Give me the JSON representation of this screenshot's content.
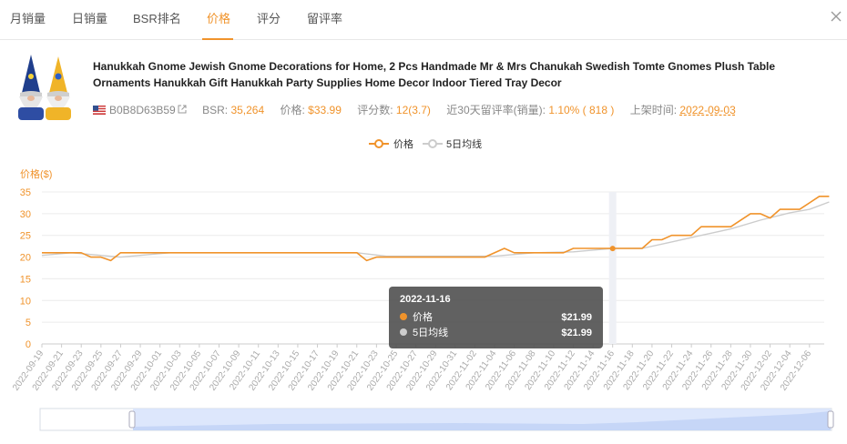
{
  "tabs": [
    {
      "label": "月销量"
    },
    {
      "label": "日销量"
    },
    {
      "label": "BSR排名"
    },
    {
      "label": "价格",
      "active": true
    },
    {
      "label": "评分"
    },
    {
      "label": "留评率"
    }
  ],
  "product": {
    "title": "Hanukkah Gnome Jewish Gnome Decorations for Home, 2 Pcs Handmade Mr & Mrs Chanukah Swedish Tomte Gnomes Plush Table Ornaments Hanukkah Gift Hanukkah Party Supplies Home Decor Indoor Tiered Tray Decor",
    "asin": "B0B8D63B59",
    "bsr_label": "BSR:",
    "bsr_value": "35,264",
    "price_label": "价格:",
    "price_value": "$33.99",
    "rating_label": "评分数:",
    "rating_value": "12(3.7)",
    "review_rate_label": "近30天留评率(销量):",
    "review_rate_value": "1.10% ( 818 )",
    "listed_label": "上架时间:",
    "listed_value": "2022-09-03"
  },
  "icons": {
    "flag": "us-flag-icon",
    "link": "external-link-icon",
    "close": "close-icon"
  },
  "colors": {
    "accent": "#f0932b",
    "ma_line": "#cccccc",
    "tooltip_bg": "#505050",
    "zoom_fill": "#d4e1fb"
  },
  "tooltip": {
    "date": "2022-11-16",
    "rows": [
      {
        "name": "价格",
        "value": "$21.99",
        "color": "#f0932b"
      },
      {
        "name": "5日均线",
        "value": "$21.99",
        "color": "#cccccc"
      }
    ]
  },
  "chart_data": {
    "type": "line",
    "ylabel": "价格($)",
    "ylim": [
      0,
      35
    ],
    "yticks": [
      0,
      5,
      10,
      15,
      20,
      25,
      30,
      35
    ],
    "grid": true,
    "legend": {
      "position": "top-center",
      "entries": [
        "价格",
        "5日均线"
      ]
    },
    "x_start": "2022-09-19",
    "x_end": "2022-12-07",
    "xtick_labels": [
      "2022-09-19",
      "2022-09-21",
      "2022-09-23",
      "2022-09-25",
      "2022-09-27",
      "2022-09-29",
      "2022-10-01",
      "2022-10-03",
      "2022-10-05",
      "2022-10-07",
      "2022-10-09",
      "2022-10-11",
      "2022-10-13",
      "2022-10-15",
      "2022-10-17",
      "2022-10-19",
      "2022-10-21",
      "2022-10-23",
      "2022-10-25",
      "2022-10-27",
      "2022-10-29",
      "2022-10-31",
      "2022-11-02",
      "2022-11-04",
      "2022-11-06",
      "2022-11-08",
      "2022-11-10",
      "2022-11-12",
      "2022-11-14",
      "2022-11-16",
      "2022-11-18",
      "2022-11-20",
      "2022-11-22",
      "2022-11-24",
      "2022-11-26",
      "2022-11-28",
      "2022-11-30",
      "2022-12-02",
      "2022-12-04",
      "2022-12-06"
    ],
    "highlight_x": "2022-11-16",
    "series": [
      {
        "name": "价格",
        "points": [
          [
            "2022-09-19",
            21
          ],
          [
            "2022-09-23",
            21
          ],
          [
            "2022-09-24",
            20
          ],
          [
            "2022-09-25",
            20
          ],
          [
            "2022-09-26",
            19.2
          ],
          [
            "2022-09-27",
            21
          ],
          [
            "2022-10-21",
            21
          ],
          [
            "2022-10-22",
            19.2
          ],
          [
            "2022-10-23",
            20
          ],
          [
            "2022-11-03",
            20
          ],
          [
            "2022-11-05",
            22
          ],
          [
            "2022-11-06",
            21
          ],
          [
            "2022-11-11",
            21
          ],
          [
            "2022-11-12",
            22
          ],
          [
            "2022-11-19",
            22
          ],
          [
            "2022-11-20",
            24
          ],
          [
            "2022-11-21",
            24
          ],
          [
            "2022-11-22",
            25
          ],
          [
            "2022-11-24",
            25
          ],
          [
            "2022-11-25",
            27
          ],
          [
            "2022-11-28",
            27
          ],
          [
            "2022-11-30",
            30
          ],
          [
            "2022-12-01",
            30
          ],
          [
            "2022-12-02",
            29
          ],
          [
            "2022-12-03",
            31
          ],
          [
            "2022-12-05",
            31
          ],
          [
            "2022-12-07",
            34
          ],
          [
            "2022-12-08",
            34
          ]
        ]
      },
      {
        "name": "5日均线",
        "points": [
          [
            "2022-09-19",
            20.4
          ],
          [
            "2022-09-22",
            21
          ],
          [
            "2022-09-27",
            20
          ],
          [
            "2022-09-30",
            20.6
          ],
          [
            "2022-10-02",
            21
          ],
          [
            "2022-10-21",
            21
          ],
          [
            "2022-10-24",
            20.2
          ],
          [
            "2022-11-04",
            20.2
          ],
          [
            "2022-11-08",
            21
          ],
          [
            "2022-11-12",
            21.2
          ],
          [
            "2022-11-16",
            21.99
          ],
          [
            "2022-11-19",
            22
          ],
          [
            "2022-11-22",
            23.5
          ],
          [
            "2022-11-25",
            25
          ],
          [
            "2022-11-28",
            26.5
          ],
          [
            "2022-12-01",
            28.5
          ],
          [
            "2022-12-04",
            30.2
          ],
          [
            "2022-12-06",
            31
          ],
          [
            "2022-12-08",
            32.7
          ]
        ]
      }
    ]
  }
}
